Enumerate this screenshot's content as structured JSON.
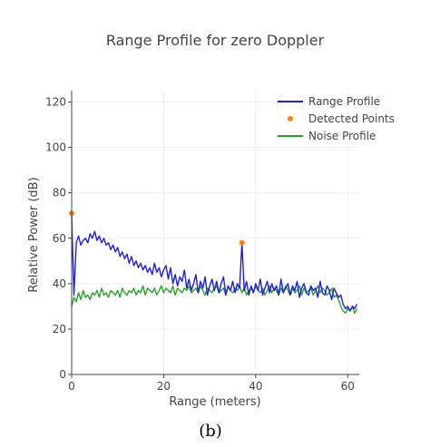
{
  "chart_data": {
    "type": "line",
    "title": "Range Profile for zero Doppler",
    "xlabel": "Range (meters)",
    "ylabel": "Relative Power (dB)",
    "xlim": [
      0,
      62.5
    ],
    "ylim": [
      0,
      125
    ],
    "xticks": [
      0,
      20,
      40,
      60
    ],
    "yticks": [
      0,
      20,
      40,
      60,
      80,
      100,
      120
    ],
    "grid": true,
    "legend_position": "top-right",
    "series": [
      {
        "name": "Range Profile",
        "color": "#1f1fd6",
        "x": [
          0,
          0.5,
          1,
          1.5,
          2,
          2.5,
          3,
          3.5,
          4,
          4.5,
          5,
          5.5,
          6,
          6.5,
          7,
          7.5,
          8,
          8.5,
          9,
          9.5,
          10,
          10.5,
          11,
          11.5,
          12,
          12.5,
          13,
          13.5,
          14,
          14.5,
          15,
          15.5,
          16,
          16.5,
          17,
          17.5,
          18,
          18.5,
          19,
          19.5,
          20,
          20.5,
          21,
          21.5,
          22,
          22.5,
          23,
          23.5,
          24,
          24.5,
          25,
          25.5,
          26,
          26.5,
          27,
          27.5,
          28,
          28.5,
          29,
          29.5,
          30,
          30.5,
          31,
          31.5,
          32,
          32.5,
          33,
          33.5,
          34,
          34.5,
          35,
          35.5,
          36,
          36.5,
          37,
          37.5,
          38,
          38.5,
          39,
          39.5,
          40,
          40.5,
          41,
          41.5,
          42,
          42.5,
          43,
          43.5,
          44,
          44.5,
          45,
          45.5,
          46,
          46.5,
          47,
          47.5,
          48,
          48.5,
          49,
          49.5,
          50,
          50.5,
          51,
          51.5,
          52,
          52.5,
          53,
          53.5,
          54,
          54.5,
          55,
          55.5,
          56,
          56.5,
          57,
          57.5,
          58,
          58.5,
          59,
          59.5,
          60,
          60.5,
          61,
          61.5,
          62
        ],
        "y": [
          70,
          35,
          58,
          61,
          57,
          59,
          60,
          58,
          62,
          60,
          63,
          59,
          61,
          58,
          60,
          57,
          58,
          55,
          57,
          54,
          56,
          52,
          54,
          51,
          53,
          49,
          52,
          48,
          50,
          47,
          49,
          46,
          48,
          45,
          47,
          44,
          49,
          45,
          47,
          43,
          46,
          48,
          42,
          47,
          40,
          44,
          39,
          43,
          41,
          46,
          38,
          42,
          37,
          40,
          44,
          36,
          41,
          38,
          43,
          35,
          39,
          42,
          37,
          41,
          36,
          40,
          43,
          35,
          39,
          37,
          41,
          36,
          40,
          38,
          58,
          37,
          41,
          35,
          39,
          36,
          40,
          37,
          42,
          35,
          38,
          41,
          36,
          40,
          37,
          39,
          35,
          42,
          36,
          38,
          40,
          35,
          39,
          37,
          41,
          34,
          38,
          40,
          36,
          35,
          39,
          37,
          38,
          34,
          41,
          36,
          35,
          39,
          37,
          33,
          38,
          36,
          34,
          35,
          31,
          29,
          30,
          28,
          30,
          29,
          31
        ]
      },
      {
        "name": "Detected Points",
        "color": "#ff7f0e",
        "x": [
          0,
          37
        ],
        "y": [
          71,
          58
        ]
      },
      {
        "name": "Noise Profile",
        "color": "#2ca02c",
        "x": [
          0,
          0.5,
          1,
          1.5,
          2,
          2.5,
          3,
          3.5,
          4,
          4.5,
          5,
          5.5,
          6,
          6.5,
          7,
          7.5,
          8,
          8.5,
          9,
          9.5,
          10,
          10.5,
          11,
          11.5,
          12,
          12.5,
          13,
          13.5,
          14,
          14.5,
          15,
          15.5,
          16,
          16.5,
          17,
          17.5,
          18,
          18.5,
          19,
          19.5,
          20,
          20.5,
          21,
          21.5,
          22,
          22.5,
          23,
          23.5,
          24,
          24.5,
          25,
          25.5,
          26,
          26.5,
          27,
          27.5,
          28,
          28.5,
          29,
          29.5,
          30,
          30.5,
          31,
          31.5,
          32,
          32.5,
          33,
          33.5,
          34,
          34.5,
          35,
          35.5,
          36,
          36.5,
          37,
          37.5,
          38,
          38.5,
          39,
          39.5,
          40,
          40.5,
          41,
          41.5,
          42,
          42.5,
          43,
          43.5,
          44,
          44.5,
          45,
          45.5,
          46,
          46.5,
          47,
          47.5,
          48,
          48.5,
          49,
          49.5,
          50,
          50.5,
          51,
          51.5,
          52,
          52.5,
          53,
          53.5,
          54,
          54.5,
          55,
          55.5,
          56,
          56.5,
          57,
          57.5,
          58,
          58.5,
          59,
          59.5,
          60,
          60.5,
          61,
          61.5,
          62
        ],
        "y": [
          30,
          34,
          32,
          36,
          33,
          37,
          34,
          35,
          33,
          36,
          35,
          37,
          34,
          38,
          35,
          36,
          34,
          37,
          36,
          35,
          37,
          34,
          38,
          36,
          35,
          37,
          36,
          38,
          35,
          37,
          36,
          39,
          35,
          38,
          37,
          36,
          38,
          35,
          37,
          39,
          36,
          38,
          37,
          36,
          39,
          35,
          38,
          37,
          36,
          38,
          37,
          39,
          36,
          37,
          38,
          36,
          39,
          37,
          35,
          38,
          37,
          36,
          38,
          39,
          36,
          37,
          38,
          35,
          39,
          37,
          36,
          38,
          37,
          39,
          36,
          38,
          35,
          37,
          38,
          36,
          39,
          37,
          36,
          38,
          35,
          37,
          39,
          36,
          38,
          37,
          35,
          38,
          36,
          39,
          37,
          35,
          38,
          36,
          37,
          39,
          35,
          38,
          36,
          37,
          38,
          35,
          37,
          39,
          36,
          38,
          37,
          35,
          36,
          38,
          34,
          35,
          33,
          30,
          28,
          27,
          29,
          28,
          30,
          27,
          29
        ]
      }
    ]
  },
  "caption": "(b)"
}
